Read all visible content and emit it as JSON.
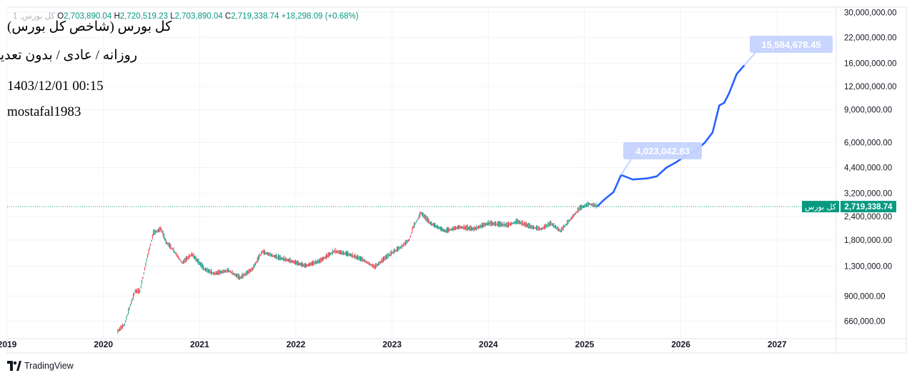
{
  "header": {
    "symbol_line": "1 ,کل بورس",
    "open_label": "O",
    "open_value": "2,703,890.04",
    "high_label": "H",
    "high_value": "2,720,519.23",
    "low_label": "L",
    "low_value": "2,703,890.04",
    "close_label": "C",
    "close_value": "2,719,338.74",
    "change": "+18,298.09 (+0.68%)"
  },
  "notes": [
    "کل بورس (شاخص کل بورس)",
    "روزانه / عادی / بدون تعدیل",
    "1403/12/01 00:15",
    "mostafal1983"
  ],
  "footer": {
    "brand": "TradingView"
  },
  "colors": {
    "up": "#089981",
    "down": "#f23645",
    "projection": "#2962ff",
    "callout_bg": "#c5d3ff",
    "price_tag": "#089981",
    "grid": "#f0f3fa"
  },
  "icons": {
    "logo": "tradingview-logo-icon"
  },
  "chart_data": {
    "type": "line",
    "scale": "log",
    "grid": true,
    "legend": "none",
    "ylim": [
      560000,
      32000000
    ],
    "xlim": [
      2019.0,
      2027.6
    ],
    "y_ticks": [
      660000,
      900000,
      1300000,
      1800000,
      2400000,
      3200000,
      4400000,
      6000000,
      9000000,
      12000000,
      16000000,
      22000000,
      30000000
    ],
    "y_tick_labels": [
      "660,000.00",
      "900,000.00",
      "1,300,000.00",
      "1,800,000.00",
      "2,400,000.00",
      "3,200,000.00",
      "4,400,000.00",
      "6,000,000.00",
      "9,000,000.00",
      "12,000,000.00",
      "16,000,000.00",
      "22,000,000.00",
      "30,000,000.00"
    ],
    "x_ticks": [
      2019,
      2020,
      2021,
      2022,
      2023,
      2024,
      2025,
      2026,
      2027
    ],
    "x_tick_labels": [
      "2019",
      "2020",
      "2021",
      "2022",
      "2023",
      "2024",
      "2025",
      "2026",
      "2027"
    ],
    "series": [
      {
        "values": [
          {
            "x": 2020.15,
            "y": 580000
          },
          {
            "x": 2020.22,
            "y": 630000
          },
          {
            "x": 2020.28,
            "y": 800000
          },
          {
            "x": 2020.33,
            "y": 950000
          },
          {
            "x": 2020.38,
            "y": 950000
          },
          {
            "x": 2020.45,
            "y": 1400000
          },
          {
            "x": 2020.52,
            "y": 1950000
          },
          {
            "x": 2020.6,
            "y": 2050000
          },
          {
            "x": 2020.65,
            "y": 1750000
          },
          {
            "x": 2020.72,
            "y": 1600000
          },
          {
            "x": 2020.82,
            "y": 1350000
          },
          {
            "x": 2020.92,
            "y": 1500000
          },
          {
            "x": 2021.05,
            "y": 1250000
          },
          {
            "x": 2021.15,
            "y": 1180000
          },
          {
            "x": 2021.3,
            "y": 1230000
          },
          {
            "x": 2021.42,
            "y": 1120000
          },
          {
            "x": 2021.55,
            "y": 1250000
          },
          {
            "x": 2021.65,
            "y": 1550000
          },
          {
            "x": 2021.8,
            "y": 1450000
          },
          {
            "x": 2021.95,
            "y": 1380000
          },
          {
            "x": 2022.1,
            "y": 1300000
          },
          {
            "x": 2022.25,
            "y": 1380000
          },
          {
            "x": 2022.4,
            "y": 1560000
          },
          {
            "x": 2022.55,
            "y": 1500000
          },
          {
            "x": 2022.7,
            "y": 1400000
          },
          {
            "x": 2022.82,
            "y": 1280000
          },
          {
            "x": 2022.92,
            "y": 1420000
          },
          {
            "x": 2023.0,
            "y": 1530000
          },
          {
            "x": 2023.1,
            "y": 1650000
          },
          {
            "x": 2023.18,
            "y": 1800000
          },
          {
            "x": 2023.22,
            "y": 2100000
          },
          {
            "x": 2023.3,
            "y": 2500000
          },
          {
            "x": 2023.4,
            "y": 2200000
          },
          {
            "x": 2023.55,
            "y": 2000000
          },
          {
            "x": 2023.7,
            "y": 2100000
          },
          {
            "x": 2023.85,
            "y": 2050000
          },
          {
            "x": 2024.0,
            "y": 2200000
          },
          {
            "x": 2024.2,
            "y": 2150000
          },
          {
            "x": 2024.3,
            "y": 2250000
          },
          {
            "x": 2024.45,
            "y": 2100000
          },
          {
            "x": 2024.55,
            "y": 2050000
          },
          {
            "x": 2024.65,
            "y": 2200000
          },
          {
            "x": 2024.75,
            "y": 2000000
          },
          {
            "x": 2024.85,
            "y": 2300000
          },
          {
            "x": 2024.95,
            "y": 2650000
          },
          {
            "x": 2025.05,
            "y": 2800000
          },
          {
            "x": 2025.13,
            "y": 2719338.74
          }
        ]
      },
      {
        "values": [
          {
            "x": 2025.13,
            "y": 2719338.74
          },
          {
            "x": 2025.2,
            "y": 2950000
          },
          {
            "x": 2025.25,
            "y": 3100000
          },
          {
            "x": 2025.3,
            "y": 3250000
          },
          {
            "x": 2025.38,
            "y": 4023042.83
          },
          {
            "x": 2025.5,
            "y": 3800000
          },
          {
            "x": 2025.65,
            "y": 3850000
          },
          {
            "x": 2025.75,
            "y": 3950000
          },
          {
            "x": 2025.85,
            "y": 4400000
          },
          {
            "x": 2025.95,
            "y": 4700000
          },
          {
            "x": 2026.05,
            "y": 5100000
          },
          {
            "x": 2026.15,
            "y": 5400000
          },
          {
            "x": 2026.25,
            "y": 6000000
          },
          {
            "x": 2026.33,
            "y": 6800000
          },
          {
            "x": 2026.4,
            "y": 9500000
          },
          {
            "x": 2026.45,
            "y": 9800000
          },
          {
            "x": 2026.5,
            "y": 11000000
          },
          {
            "x": 2026.58,
            "y": 14000000
          },
          {
            "x": 2026.66,
            "y": 15584678.45
          }
        ]
      }
    ],
    "callouts": [
      {
        "label": "4,023,042.83",
        "y": 4023042.83
      },
      {
        "label": "15,584,678.45",
        "y": 15584678.45
      }
    ],
    "last_price": {
      "name": "کل بورس",
      "label": "2,719,338.74",
      "y": 2719338.74
    }
  }
}
